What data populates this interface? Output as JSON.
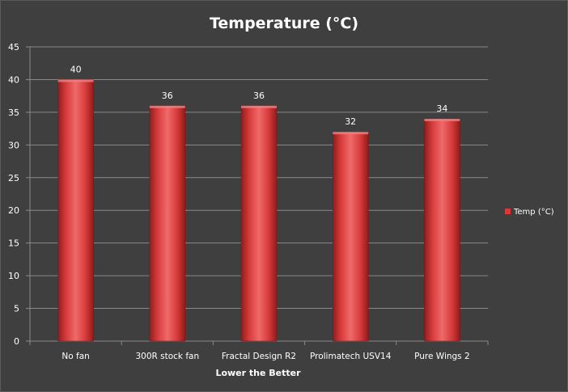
{
  "chart_data": {
    "type": "bar",
    "title": "Temperature (°C)",
    "xlabel": "Lower the Better",
    "ylabel": "",
    "categories": [
      "No fan",
      "300R stock fan",
      "Fractal Design R2",
      "Prolimatech USV14",
      "Pure Wings 2"
    ],
    "series": [
      {
        "name": "Temp (°C)",
        "values": [
          40,
          36,
          36,
          32,
          34
        ]
      }
    ],
    "ylim": [
      0,
      45
    ],
    "yticks": [
      0,
      5,
      10,
      15,
      20,
      25,
      30,
      35,
      40,
      45
    ],
    "grid": true,
    "legend": "right",
    "data_labels": true,
    "colors": {
      "bar": "#d63a3a",
      "bar_dark": "#8f1c1c",
      "bar_light": "#ef6a6a",
      "background": "#3f3f3f",
      "grid": "#8a8a8a",
      "text": "#ffffff"
    }
  }
}
